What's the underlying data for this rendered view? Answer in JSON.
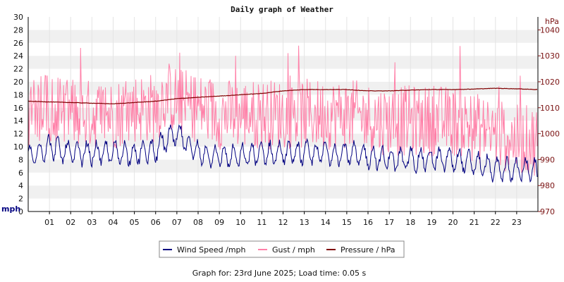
{
  "chart_data": {
    "type": "line",
    "title": "Daily graph of Weather",
    "left_axis": {
      "unit": "mph",
      "ylim": [
        0,
        30
      ],
      "ticks": [
        0,
        2,
        4,
        6,
        8,
        10,
        12,
        14,
        16,
        18,
        20,
        22,
        24,
        26,
        28,
        30
      ]
    },
    "right_axis": {
      "unit": "hPa",
      "ylim": [
        970,
        1045
      ],
      "ticks": [
        970,
        980,
        990,
        1000,
        1010,
        1020,
        1030,
        1040
      ]
    },
    "x_axis": {
      "range_hours": [
        0,
        24
      ],
      "tick_labels": [
        "01",
        "02",
        "03",
        "04",
        "05",
        "06",
        "07",
        "08",
        "09",
        "10",
        "11",
        "12",
        "13",
        "14",
        "15",
        "16",
        "17",
        "18",
        "19",
        "20",
        "21",
        "22",
        "23"
      ]
    },
    "grid": "alternating horizontal bands",
    "legend_position": "bottom",
    "series": [
      {
        "name": "Wind Speed /mph",
        "color": "#000080",
        "axis": "left",
        "x": [
          0,
          1,
          2,
          3,
          4,
          5,
          6,
          6.5,
          7,
          8,
          9,
          10,
          11,
          12,
          13,
          14,
          15,
          16,
          17,
          18,
          19,
          20,
          21,
          22,
          23,
          24
        ],
        "y": [
          8.5,
          10,
          9,
          9,
          9,
          9,
          9.5,
          11,
          12,
          9,
          8.5,
          8.5,
          9,
          9,
          9,
          9,
          9,
          8.5,
          8,
          8,
          8,
          8,
          7.5,
          6.5,
          6.5,
          6.5
        ]
      },
      {
        "name": "Gust / mph",
        "color": "#ff80a8",
        "axis": "left",
        "x": [
          0,
          1,
          2,
          3,
          4,
          5,
          6,
          6.5,
          7,
          8,
          9,
          10,
          11,
          12,
          13,
          14,
          15,
          16,
          17,
          18,
          19,
          20,
          21,
          22,
          23,
          24
        ],
        "y": [
          15,
          16,
          15,
          15,
          15,
          16,
          16,
          18,
          17,
          16,
          15,
          15,
          15,
          15,
          15,
          15,
          15,
          14.5,
          14,
          14,
          14,
          14,
          13,
          12,
          11,
          11
        ]
      },
      {
        "name": "Pressure / hPa",
        "color": "#800000",
        "axis": "right",
        "x": [
          0,
          2,
          4,
          6,
          7,
          8,
          9,
          10,
          11,
          12,
          13,
          14,
          15,
          16,
          17,
          18,
          19,
          20,
          21,
          22,
          23,
          24
        ],
        "y": [
          1012.5,
          1012,
          1011.5,
          1012.5,
          1013.5,
          1014,
          1014.5,
          1015,
          1015.5,
          1016.5,
          1017,
          1017,
          1017,
          1016.5,
          1016.5,
          1016.8,
          1017,
          1017,
          1017.2,
          1017.5,
          1017.3,
          1017
        ]
      }
    ]
  },
  "footer": "Graph for: 23rd June 2025; Load time: 0.05 s"
}
